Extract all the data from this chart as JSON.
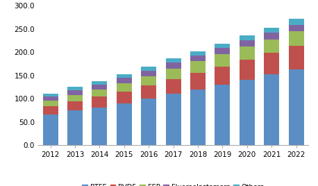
{
  "years": [
    "2012",
    "2013",
    "2014",
    "2015",
    "2016",
    "2017",
    "2018",
    "2019",
    "2020",
    "2021",
    "2022"
  ],
  "PTFE": [
    66,
    74,
    81,
    90,
    100,
    110,
    120,
    130,
    141,
    152,
    163
  ],
  "PVDF": [
    18,
    20,
    23,
    25,
    28,
    32,
    35,
    38,
    43,
    47,
    50
  ],
  "FEP": [
    12,
    14,
    16,
    18,
    20,
    22,
    25,
    27,
    28,
    28,
    32
  ],
  "Fluoroelastomers": [
    8,
    10,
    10,
    12,
    12,
    13,
    13,
    14,
    14,
    15,
    14
  ],
  "Others": [
    7,
    7,
    7,
    8,
    8,
    9,
    9,
    9,
    10,
    11,
    12
  ],
  "colors": {
    "PTFE": "#5b8ec4",
    "PVDF": "#c0504d",
    "FEP": "#9bbb59",
    "Fluoroelastomers": "#8064a2",
    "Others": "#4bacc6"
  },
  "ylim": [
    0,
    300
  ],
  "yticks": [
    0.0,
    50.0,
    100.0,
    150.0,
    200.0,
    250.0,
    300.0
  ],
  "tick_fontsize": 7.5,
  "legend_fontsize": 7,
  "background_color": "#ffffff"
}
